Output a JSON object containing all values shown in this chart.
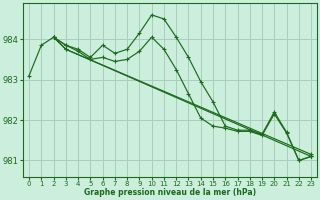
{
  "title": "Graphe pression niveau de la mer (hPa)",
  "bg_color": "#cceedd",
  "grid_color": "#aaccbb",
  "line_color": "#1a6b1a",
  "xlim": [
    -0.5,
    23.5
  ],
  "ylim": [
    980.6,
    984.9
  ],
  "yticks": [
    981,
    982,
    983,
    984
  ],
  "xticks": [
    0,
    1,
    2,
    3,
    4,
    5,
    6,
    7,
    8,
    9,
    10,
    11,
    12,
    13,
    14,
    15,
    16,
    17,
    18,
    19,
    20,
    21,
    22,
    23
  ],
  "series": [
    {
      "x": [
        0,
        1,
        2,
        3,
        4,
        5,
        6,
        7,
        8,
        9,
        10,
        11,
        12,
        13,
        14,
        15,
        16,
        17,
        18,
        19,
        20,
        21,
        22,
        23
      ],
      "y": [
        983.1,
        983.85,
        984.05,
        983.85,
        983.75,
        983.55,
        983.85,
        983.65,
        983.75,
        984.15,
        984.6,
        984.5,
        984.05,
        983.55,
        982.95,
        982.45,
        981.85,
        981.75,
        981.75,
        981.65,
        982.2,
        981.7,
        981.0,
        981.1
      ]
    },
    {
      "x": [
        2,
        3,
        4,
        5,
        6,
        7,
        8,
        9,
        10,
        11,
        12,
        13,
        14,
        15,
        16,
        17,
        18,
        19,
        20,
        21,
        22,
        23
      ],
      "y": [
        984.05,
        983.85,
        983.7,
        983.5,
        983.55,
        983.45,
        983.5,
        983.7,
        984.05,
        983.75,
        983.25,
        982.65,
        982.05,
        981.85,
        981.8,
        981.72,
        981.72,
        981.62,
        982.15,
        981.68,
        981.0,
        981.1
      ]
    },
    {
      "x": [
        2,
        3,
        23
      ],
      "y": [
        984.05,
        983.75,
        981.1
      ]
    },
    {
      "x": [
        2,
        3,
        23
      ],
      "y": [
        984.05,
        983.75,
        981.15
      ]
    }
  ]
}
